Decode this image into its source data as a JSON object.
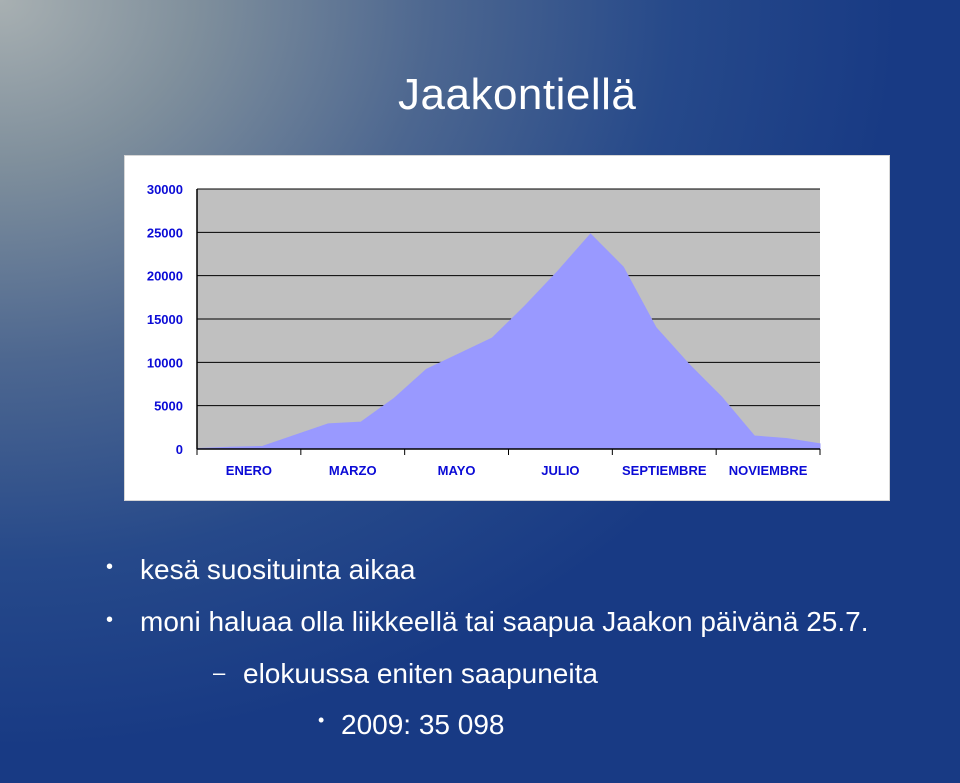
{
  "slide": {
    "title": "Jaakontiellä"
  },
  "bullets": {
    "item1": "kesä suosituinta aikaa",
    "item2": "moni haluaa olla liikkeellä tai saapua Jaakon päivänä 25.7.",
    "sub_item": "elokuussa eniten saapuneita",
    "sub_sub_item": "2009: 35 098"
  },
  "colors": {
    "area_fill": "#9999ff",
    "plot_bg": "#c0c0c0",
    "tick_text": "#0b0bd6"
  },
  "chart_data": {
    "type": "area",
    "y_tick_labels": [
      "0",
      "5000",
      "10000",
      "15000",
      "20000",
      "25000",
      "30000"
    ],
    "x_tick_labels": [
      "ENERO",
      "MARZO",
      "MAYO",
      "JULIO",
      "SEPTIEMBRE",
      "NOVIEMBRE"
    ],
    "ylim": [
      0,
      30000
    ],
    "grid": true,
    "series": [
      {
        "values": [
          50,
          200,
          300,
          1600,
          2900,
          3100,
          5800,
          9200,
          11000,
          12800,
          16500,
          20500,
          24800,
          21000,
          14000,
          9800,
          6000,
          1500,
          1200,
          600
        ]
      }
    ]
  }
}
